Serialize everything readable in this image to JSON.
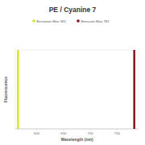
{
  "chart_data": {
    "type": "bar",
    "title": "PE / Cyanine 7",
    "x_label": "Wavelength (nm)",
    "y_label": "Fluorescence",
    "series": [
      {
        "name": "Excitation Max 565",
        "color": "#d4e61c",
        "x": [
          565
        ],
        "values": [
          100
        ]
      },
      {
        "name": "Emission Max 782",
        "color": "#7a0f16",
        "x": [
          782
        ],
        "values": [
          100
        ]
      }
    ],
    "xlim": [
      560,
      790
    ],
    "xticks": [
      600,
      650,
      700,
      750
    ],
    "ylim": [
      0,
      100
    ],
    "tick_labels": "x"
  }
}
